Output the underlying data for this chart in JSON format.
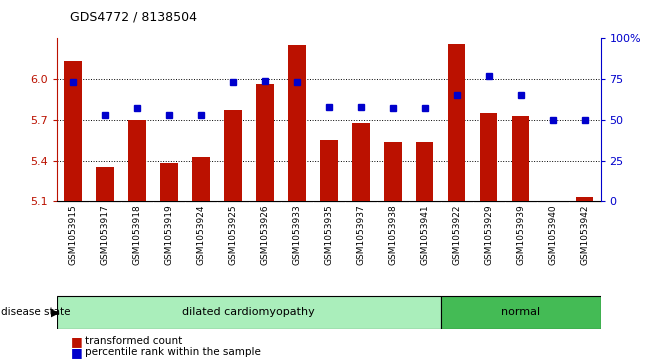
{
  "title": "GDS4772 / 8138504",
  "samples": [
    "GSM1053915",
    "GSM1053917",
    "GSM1053918",
    "GSM1053919",
    "GSM1053924",
    "GSM1053925",
    "GSM1053926",
    "GSM1053933",
    "GSM1053935",
    "GSM1053937",
    "GSM1053938",
    "GSM1053941",
    "GSM1053922",
    "GSM1053929",
    "GSM1053939",
    "GSM1053940",
    "GSM1053942"
  ],
  "bar_values": [
    6.13,
    5.35,
    5.7,
    5.38,
    5.43,
    5.77,
    5.96,
    6.25,
    5.55,
    5.68,
    5.54,
    5.54,
    6.26,
    5.75,
    5.73,
    5.1,
    5.13
  ],
  "percentile_values": [
    73,
    53,
    57,
    53,
    53,
    73,
    74,
    73,
    58,
    58,
    57,
    57,
    65,
    77,
    65,
    50,
    50
  ],
  "disease_groups": [
    {
      "label": "dilated cardiomyopathy",
      "start": 0,
      "end": 12,
      "color": "#AAEEBB"
    },
    {
      "label": "normal",
      "start": 12,
      "end": 17,
      "color": "#44BB55"
    }
  ],
  "ymin": 5.1,
  "ymax": 6.3,
  "y_ticks": [
    5.1,
    5.4,
    5.7,
    6.0
  ],
  "y_tick_labels": [
    "5.1",
    "5.4",
    "5.7",
    "6.0"
  ],
  "right_yticks": [
    0,
    25,
    50,
    75,
    100
  ],
  "right_ytick_labels": [
    "0",
    "25",
    "50",
    "75",
    "100%"
  ],
  "bar_color": "#BB1100",
  "dot_color": "#0000CC",
  "bar_width": 0.55,
  "plot_bg_color": "#FFFFFF",
  "label_bg_color": "#CCCCCC"
}
